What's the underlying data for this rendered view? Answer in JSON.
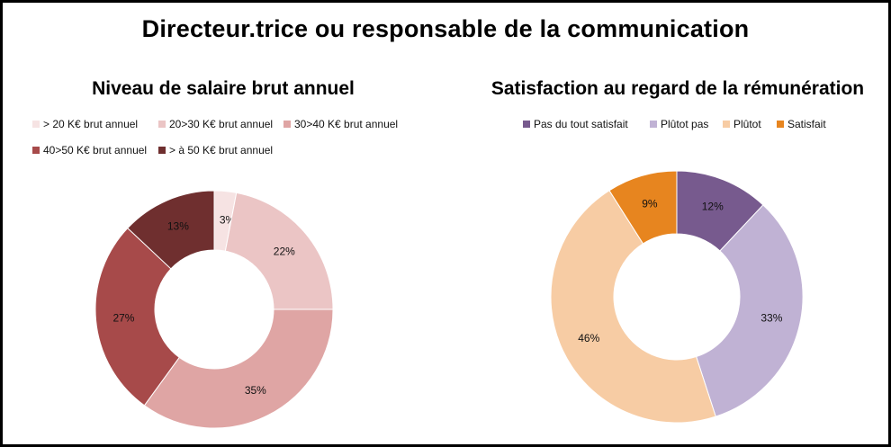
{
  "title": "Directeur.trice ou responsable de la communication",
  "chart_data": [
    {
      "type": "pie",
      "donut": true,
      "title": "Niveau de salaire brut annuel",
      "legend_position": "top",
      "categories": [
        "> 20 K€ brut annuel",
        "20>30 K€ brut annuel",
        "30>40 K€ brut annuel",
        "40>50 K€ brut annuel",
        "> à 50 K€ brut annuel"
      ],
      "values": [
        3,
        22,
        35,
        27,
        13
      ],
      "labels": [
        "3%",
        "22%",
        "35%",
        "27%",
        "13%"
      ],
      "colors": [
        "#f6e3e3",
        "#ebc5c5",
        "#dfa5a4",
        "#a74a4a",
        "#6f2f2f"
      ]
    },
    {
      "type": "pie",
      "donut": true,
      "title": "Satisfaction au regard de la rémunération",
      "legend_position": "top",
      "categories": [
        "Pas du tout satisfait",
        "Plûtot pas",
        "Plûtot",
        "Satisfait"
      ],
      "values": [
        12,
        33,
        46,
        9
      ],
      "labels": [
        "12%",
        "33%",
        "46%",
        "9%"
      ],
      "colors": [
        "#775a8e",
        "#c0b2d4",
        "#f7cca4",
        "#e7851f"
      ]
    }
  ]
}
